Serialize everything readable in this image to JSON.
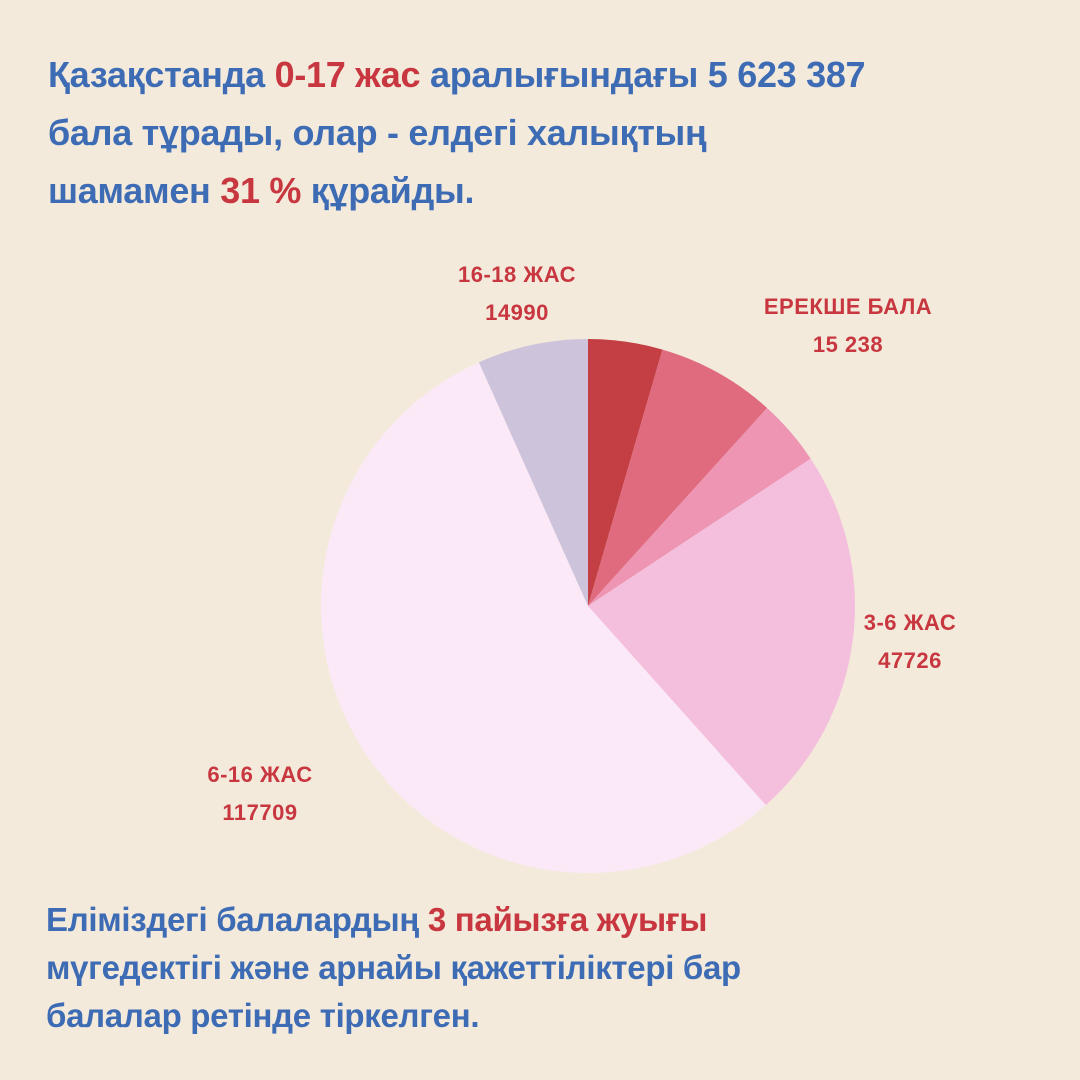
{
  "headline": {
    "part1": " Қазақстанда ",
    "accent1": "0-17 жас",
    "part2": " аралығындағы 5 623 387 бала тұрады, олар - елдегі халықтың шамамен ",
    "accent2": "31 %",
    "part3": " құрайды."
  },
  "footer": {
    "part1": "Еліміздегі балалардың ",
    "accent": "3 пайызға жуығы",
    "part2": " мүгедектігі және арнайы қажеттіліктері бар балалар ретінде тіркелген."
  },
  "colors": {
    "background": "#f3eadc",
    "text_blue": "#3d6cb5",
    "accent_red": "#c8373f"
  },
  "chart_data": {
    "type": "pie",
    "start": "12 o'clock",
    "direction": "clockwise",
    "slices": [
      {
        "label": "",
        "value": "",
        "share": 0.045,
        "color": "#c43f44"
      },
      {
        "label": "ЕРЕКШЕ БАЛА",
        "value": "15 238",
        "share": 0.072,
        "color": "#e06a7e"
      },
      {
        "label": "",
        "value": "",
        "share": 0.04,
        "color": "#ee95b4"
      },
      {
        "label": "3-6 ЖАС",
        "value": "47726",
        "share": 0.227,
        "color": "#f4bfdd"
      },
      {
        "label": "6-16 ЖАС",
        "value": "117709",
        "share": 0.549,
        "color": "#fbe9f8"
      },
      {
        "label": "16-18 ЖАС",
        "value": "14990",
        "share": 0.067,
        "color": "#cdc3db"
      }
    ]
  }
}
